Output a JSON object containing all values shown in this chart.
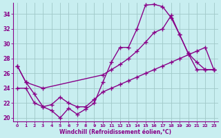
{
  "xlabel": "Windchill (Refroidissement éolien,°C)",
  "bg_color": "#c8eef0",
  "grid_color": "#a0c8c8",
  "line_color": "#880088",
  "x_ticks": [
    0,
    1,
    2,
    3,
    4,
    5,
    6,
    7,
    8,
    9,
    10,
    11,
    12,
    13,
    14,
    15,
    16,
    17,
    18,
    19,
    20,
    21,
    22,
    23
  ],
  "y_ticks": [
    20,
    22,
    24,
    26,
    28,
    30,
    32,
    34
  ],
  "ylim": [
    19.5,
    35.5
  ],
  "xlim": [
    -0.5,
    23.5
  ],
  "line1_x": [
    0,
    1,
    2,
    3,
    4,
    5,
    6,
    7,
    8,
    9,
    10,
    11,
    12,
    13,
    14,
    15,
    16,
    17,
    18,
    19,
    20,
    21,
    22,
    23
  ],
  "line1_y": [
    27.0,
    24.8,
    23.2,
    21.5,
    21.0,
    20.0,
    21.3,
    20.5,
    21.2,
    22.0,
    24.8,
    27.5,
    29.5,
    29.5,
    32.0,
    35.2,
    35.3,
    35.0,
    33.5,
    31.2,
    28.7,
    26.5,
    26.5,
    26.5
  ],
  "line2_x": [
    0,
    1,
    3,
    10,
    11,
    12,
    13,
    14,
    15,
    16,
    17,
    18,
    19,
    20,
    21,
    22,
    23
  ],
  "line2_y": [
    27.0,
    24.8,
    24.0,
    25.8,
    26.5,
    27.2,
    28.0,
    29.0,
    30.2,
    31.5,
    32.0,
    33.8,
    31.2,
    28.7,
    27.5,
    26.5,
    26.5
  ],
  "line3_x": [
    0,
    1,
    2,
    3,
    4,
    5,
    6,
    7,
    8,
    9,
    10,
    11,
    12,
    13,
    14,
    15,
    16,
    17,
    18,
    19,
    20,
    21,
    22,
    23
  ],
  "line3_y": [
    24.0,
    24.0,
    22.0,
    21.5,
    21.8,
    22.8,
    22.0,
    21.5,
    21.5,
    22.5,
    23.5,
    24.0,
    24.5,
    25.0,
    25.5,
    26.0,
    26.5,
    27.0,
    27.5,
    28.0,
    28.5,
    29.0,
    29.5,
    26.5
  ],
  "marker": "+",
  "markersize": 4,
  "linewidth": 1.0
}
